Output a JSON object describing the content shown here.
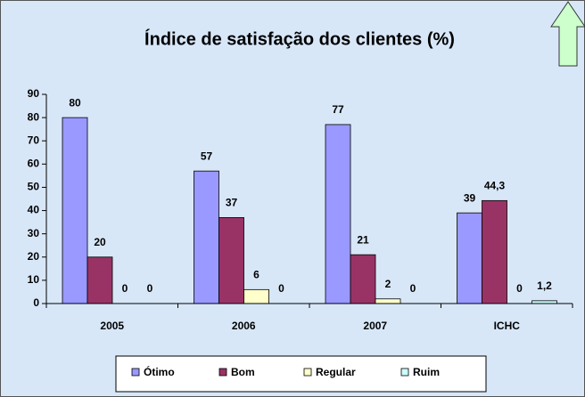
{
  "chart_data": {
    "type": "bar",
    "title": "Índice de satisfação dos clientes (%)",
    "categories": [
      "2005",
      "2006",
      "2007",
      "ICHC"
    ],
    "series": [
      {
        "name": "Ótimo",
        "color": "#9999ff",
        "values": [
          80,
          57,
          77,
          39
        ]
      },
      {
        "name": "Bom",
        "color": "#993366",
        "values": [
          20,
          37,
          21,
          44.3
        ],
        "value_labels": [
          "20",
          "37",
          "21",
          "44,3"
        ]
      },
      {
        "name": "Regular",
        "color": "#ffffcc",
        "values": [
          0,
          6,
          2,
          0
        ]
      },
      {
        "name": "Ruim",
        "color": "#ccffff",
        "values": [
          0,
          0,
          0,
          1.2
        ],
        "value_labels": [
          "0",
          "0",
          "0",
          "1,2"
        ]
      }
    ],
    "ylim": [
      0,
      90
    ],
    "yticks": [
      0,
      10,
      20,
      30,
      40,
      50,
      60,
      70,
      80,
      90
    ],
    "grid": false,
    "legend": "bottom"
  }
}
